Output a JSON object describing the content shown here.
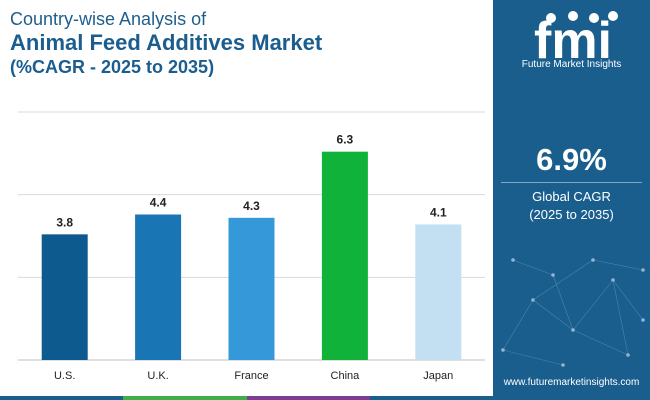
{
  "header": {
    "line1": "Country-wise Analysis of",
    "line2": "Animal Feed Additives Market",
    "line3": "(%CAGR - 2025 to 2035)"
  },
  "chart_data": {
    "type": "bar",
    "title": "Animal Feed Additives Market (%CAGR - 2025 to 2035)",
    "categories": [
      "U.S.",
      "U.K.",
      "France",
      "China",
      "Japan"
    ],
    "values": [
      3.8,
      4.4,
      4.3,
      6.3,
      4.1
    ],
    "value_labels": [
      "3.8",
      "4.4",
      "4.3",
      "6.3",
      "4.1"
    ],
    "bar_colors": [
      "#0d5a8e",
      "#1a75b5",
      "#3598d8",
      "#11b23a",
      "#c3e0f3"
    ],
    "ylim": [
      0,
      7.5
    ],
    "grid": true,
    "xlabel": "",
    "ylabel": ""
  },
  "sidebar": {
    "logo_text": "fmi",
    "logo_subtitle": "Future Market Insights",
    "cagr_value": "6.9%",
    "cagr_label": "Global CAGR",
    "cagr_period": "(2025 to 2035)",
    "website": "www.futuremarketinsights.com"
  },
  "colors": {
    "sidebar_bg": "#1a5e8e",
    "title": "#1b5d8e",
    "footer": [
      "#1a5e8e",
      "#3fae49",
      "#7a3e93",
      "#1a5e8e"
    ]
  }
}
